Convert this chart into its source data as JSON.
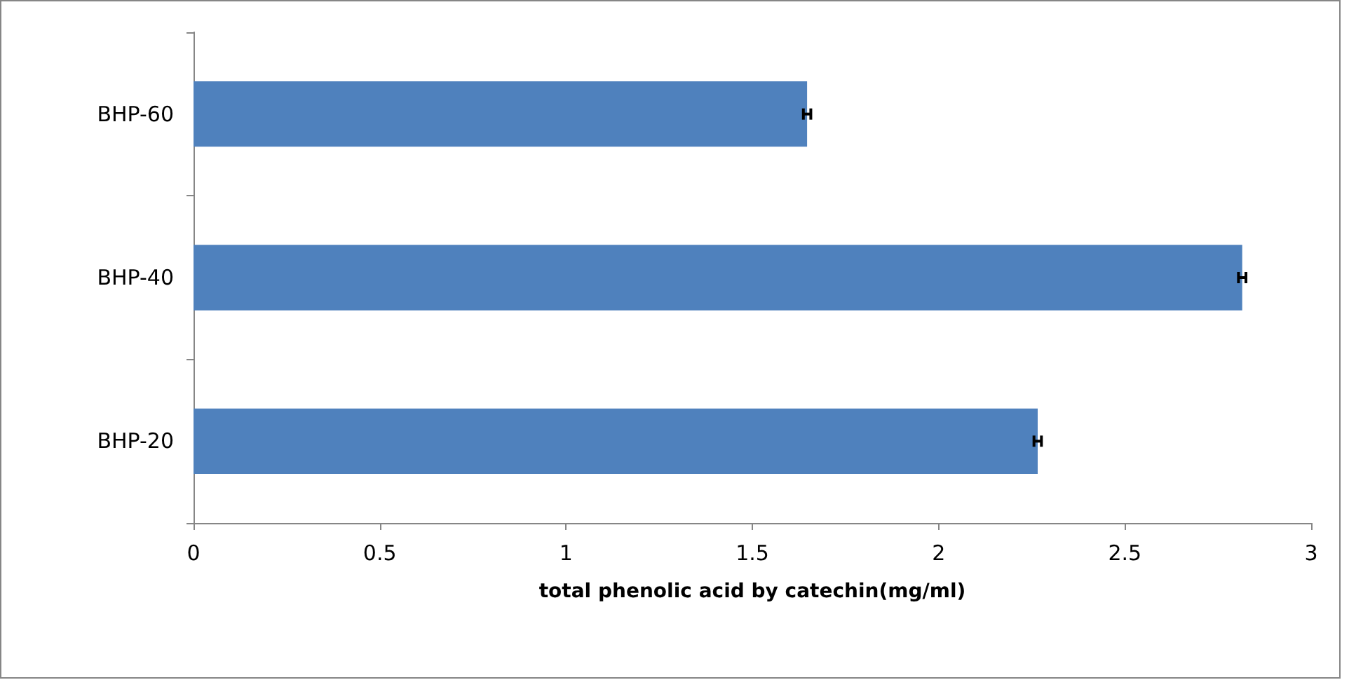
{
  "chart_data": {
    "type": "bar",
    "orientation": "horizontal",
    "xlabel": "total phenolic acid by catechin(mg/ml)",
    "categories": [
      "BHP-60",
      "BHP-40",
      "BHP-20"
    ],
    "values": [
      1.647,
      2.815,
      2.266
    ],
    "errors": [
      0.01,
      0.01,
      0.01
    ],
    "color": "#4f81bd",
    "xlim": [
      0,
      3
    ],
    "xticks": [
      0,
      0.5,
      1,
      1.5,
      2,
      2.5,
      3
    ],
    "grid": false
  }
}
